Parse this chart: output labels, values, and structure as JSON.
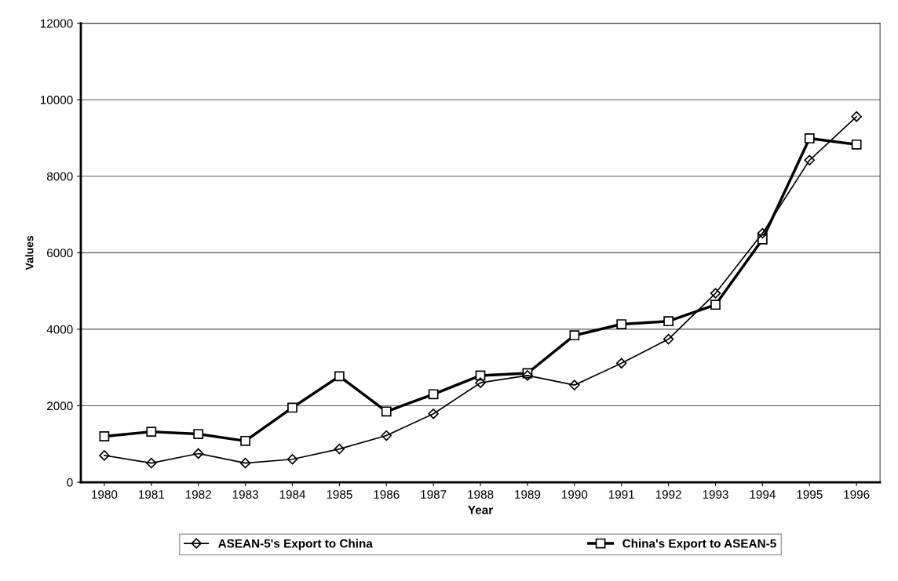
{
  "chart_data": {
    "type": "line",
    "xlabel": "Year",
    "ylabel": "Values",
    "categories": [
      "1980",
      "1981",
      "1982",
      "1983",
      "1984",
      "1985",
      "1986",
      "1987",
      "1988",
      "1989",
      "1990",
      "1991",
      "1992",
      "1993",
      "1994",
      "1995",
      "1996"
    ],
    "series": [
      {
        "name": "ASEAN-5's Export to China",
        "color": "#000000",
        "marker": "diamond",
        "values": [
          700,
          500,
          750,
          500,
          600,
          870,
          1220,
          1790,
          2600,
          2790,
          2540,
          3110,
          3740,
          4940,
          6510,
          8420,
          9560
        ]
      },
      {
        "name": "China's Export to ASEAN-5",
        "color": "#000000",
        "marker": "square",
        "values": [
          1200,
          1320,
          1260,
          1080,
          1950,
          2770,
          1850,
          2300,
          2790,
          2850,
          3840,
          4130,
          4210,
          4640,
          6350,
          8990,
          8830
        ]
      }
    ],
    "ylim": [
      0,
      12000
    ],
    "yticks": [
      0,
      2000,
      4000,
      6000,
      8000,
      10000,
      12000
    ],
    "grid": "y",
    "legend": "bottom",
    "line_style": "solid"
  }
}
